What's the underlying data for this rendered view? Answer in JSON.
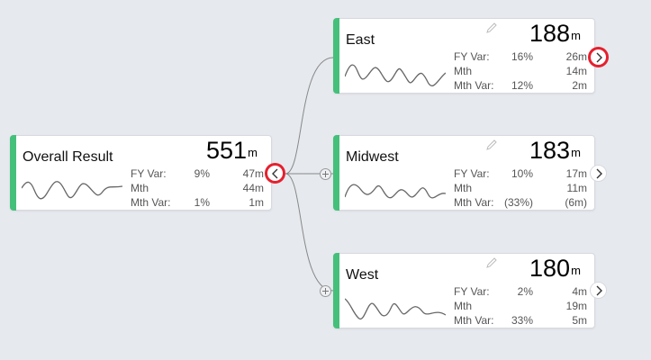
{
  "nodes": {
    "overall": {
      "name": "Overall Result",
      "value": "551",
      "unit": "m",
      "metrics": [
        {
          "label": "FY Var:",
          "pct": "9%",
          "abs": "47m"
        },
        {
          "label": "Mth",
          "pct": "",
          "abs": "44m"
        },
        {
          "label": "Mth Var:",
          "pct": "1%",
          "abs": "1m"
        }
      ]
    },
    "east": {
      "name": "East",
      "value": "188",
      "unit": "m",
      "metrics": [
        {
          "label": "FY Var:",
          "pct": "16%",
          "abs": "26m"
        },
        {
          "label": "Mth",
          "pct": "",
          "abs": "14m"
        },
        {
          "label": "Mth Var:",
          "pct": "12%",
          "abs": "2m"
        }
      ]
    },
    "midwest": {
      "name": "Midwest",
      "value": "183",
      "unit": "m",
      "metrics": [
        {
          "label": "FY Var:",
          "pct": "10%",
          "abs": "17m"
        },
        {
          "label": "Mth",
          "pct": "",
          "abs": "11m"
        },
        {
          "label": "Mth Var:",
          "pct": "(33%)",
          "abs": "(6m)"
        }
      ]
    },
    "west": {
      "name": "West",
      "value": "180",
      "unit": "m",
      "metrics": [
        {
          "label": "FY Var:",
          "pct": "2%",
          "abs": "4m"
        },
        {
          "label": "Mth",
          "pct": "",
          "abs": "19m"
        },
        {
          "label": "Mth Var:",
          "pct": "33%",
          "abs": "5m"
        }
      ]
    }
  },
  "icons": {
    "collapse": "chevron-left-icon",
    "expand": "chevron-right-icon",
    "edit": "pencil-icon",
    "add": "plus-icon"
  },
  "colors": {
    "accent": "#45c07a",
    "highlight": "#e5202e",
    "background": "#e6e9ee"
  }
}
